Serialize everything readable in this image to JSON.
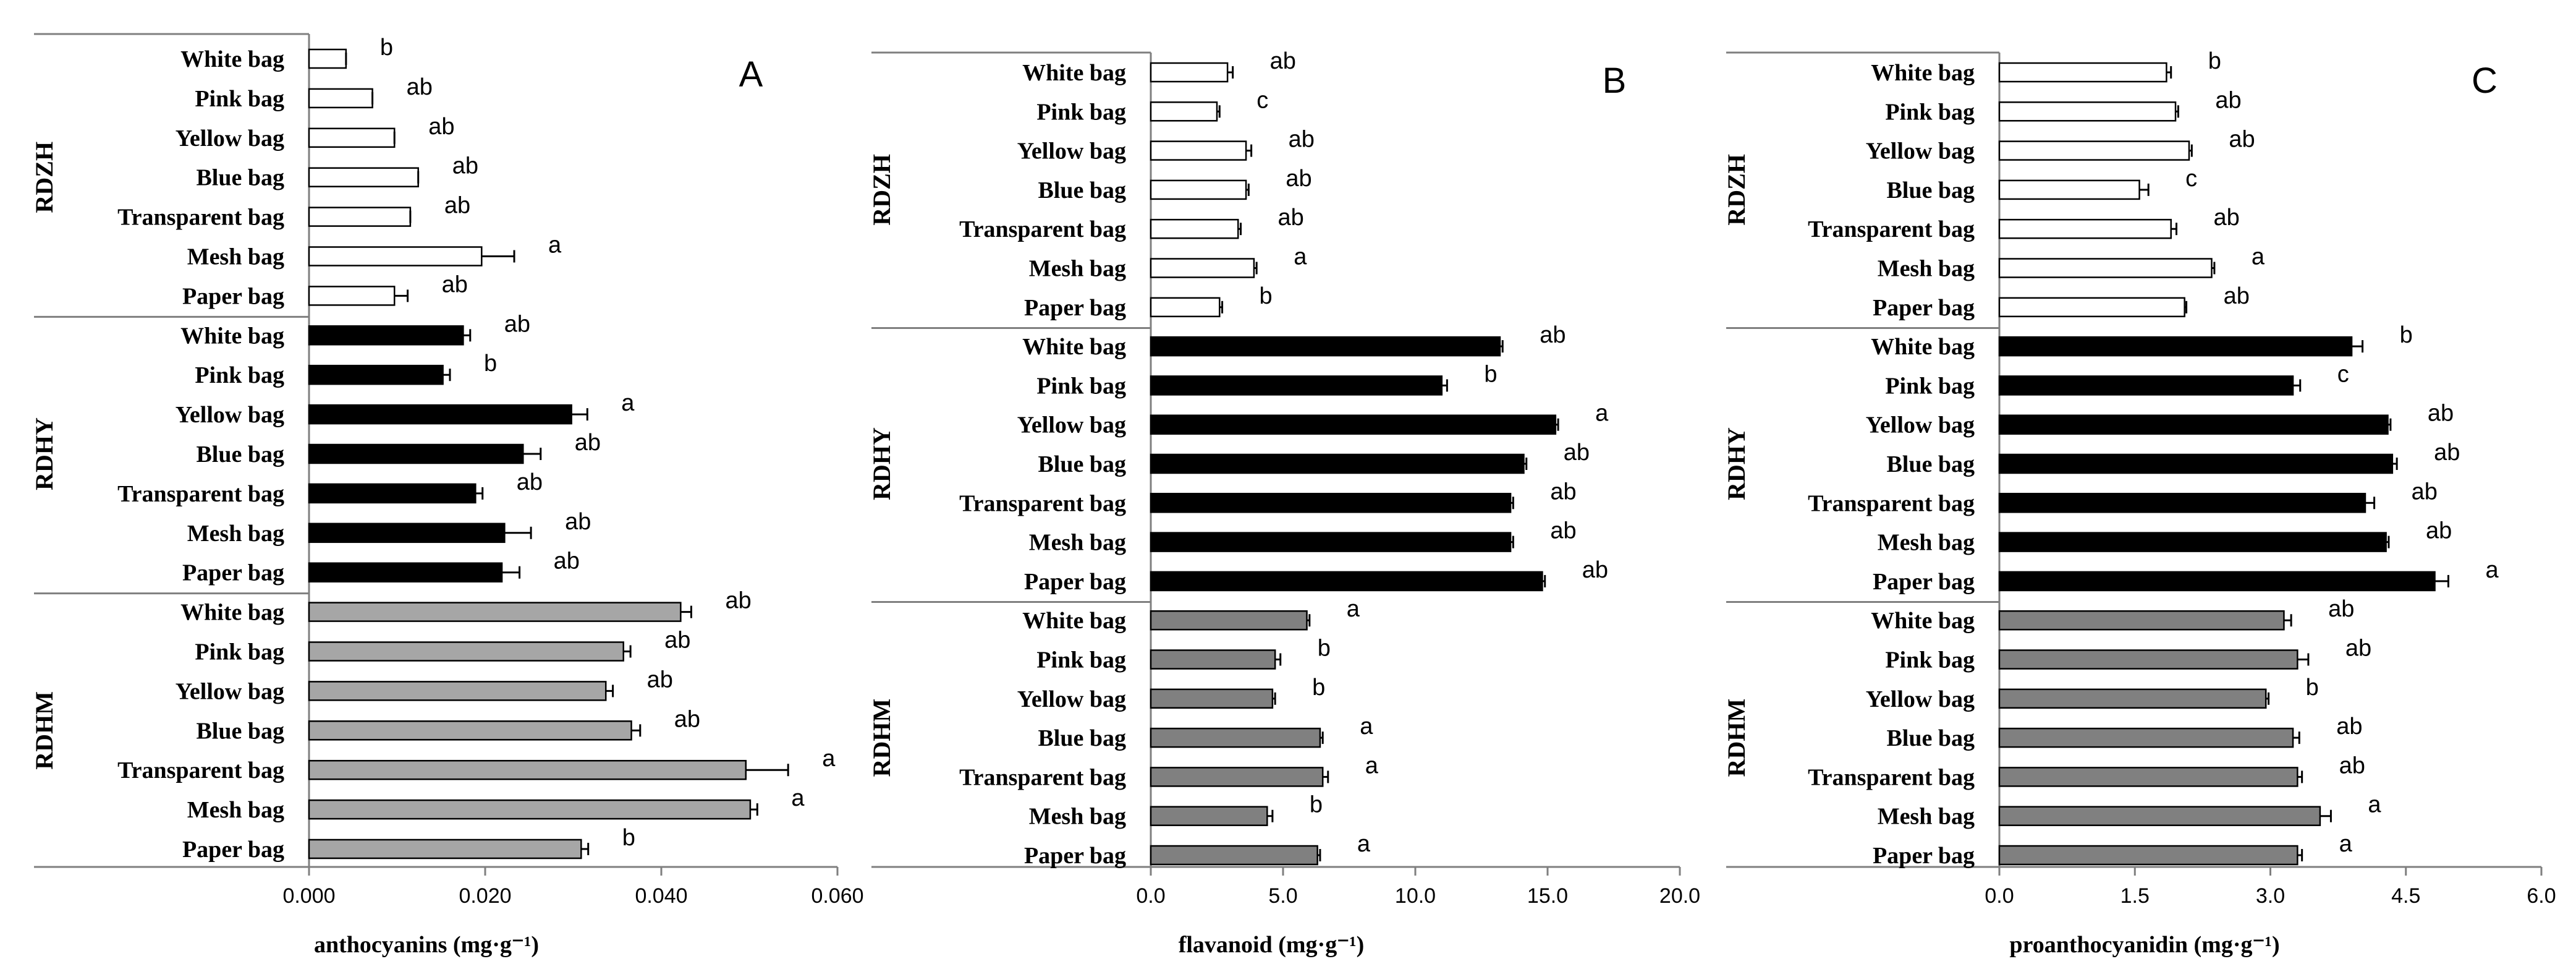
{
  "chart_data": [
    {
      "type": "bar",
      "orientation": "horizontal",
      "panel_label": "A",
      "xlabel": "anthocyanins (mg·g⁻¹)",
      "xlim": [
        0,
        0.06
      ],
      "xticks": [
        "0.000",
        "0.020",
        "0.040",
        "0.060"
      ],
      "xtick_values": [
        0,
        0.02,
        0.04,
        0.06
      ],
      "groups": [
        {
          "name": "RDZH",
          "color": "#ffffff",
          "categories": [
            "White bag",
            "Pink bag",
            "Yellow bag",
            "Blue bag",
            "Transparent bag",
            "Mesh bag",
            "Paper bag"
          ],
          "values": [
            0.0042,
            0.0072,
            0.0097,
            0.0124,
            0.0115,
            0.0196,
            0.0097
          ],
          "errors": [
            0.0,
            0.0,
            0.0,
            0.0,
            0.0,
            0.0037,
            0.0015
          ],
          "letters": [
            "b",
            "ab",
            "ab",
            "ab",
            "ab",
            "a",
            "ab"
          ]
        },
        {
          "name": "RDHY",
          "color": "#000000",
          "categories": [
            "White bag",
            "Pink bag",
            "Yellow bag",
            "Blue bag",
            "Transparent bag",
            "Mesh bag",
            "Paper bag"
          ],
          "values": [
            0.0175,
            0.0152,
            0.0298,
            0.0243,
            0.0189,
            0.0222,
            0.0219
          ],
          "errors": [
            0.0008,
            0.0008,
            0.0018,
            0.002,
            0.0008,
            0.003,
            0.002
          ],
          "letters": [
            "ab",
            "b",
            "a",
            "ab",
            "ab",
            "ab",
            "ab"
          ]
        },
        {
          "name": "RDHM",
          "color": "#a6a6a6",
          "categories": [
            "White bag",
            "Pink bag",
            "Yellow bag",
            "Blue bag",
            "Transparent bag",
            "Mesh bag",
            "Paper bag"
          ],
          "values": [
            0.0422,
            0.0357,
            0.0337,
            0.0366,
            0.0496,
            0.0501,
            0.0309
          ],
          "errors": [
            0.0012,
            0.0008,
            0.0008,
            0.001,
            0.0048,
            0.0008,
            0.0008
          ],
          "letters": [
            "ab",
            "ab",
            "ab",
            "ab",
            "a",
            "a",
            "b"
          ]
        }
      ]
    },
    {
      "type": "bar",
      "orientation": "horizontal",
      "panel_label": "B",
      "xlabel": "flavanoid (mg·g⁻¹)",
      "xlim": [
        0,
        20
      ],
      "xticks": [
        "0.0",
        "5.0",
        "10.0",
        "15.0",
        "20.0"
      ],
      "xtick_values": [
        0,
        5,
        10,
        15,
        20
      ],
      "groups": [
        {
          "name": "RDZH",
          "color": "#ffffff",
          "categories": [
            "White bag",
            "Pink bag",
            "Yellow bag",
            "Blue bag",
            "Transparent bag",
            "Mesh bag",
            "Paper bag"
          ],
          "values": [
            2.9,
            2.5,
            3.6,
            3.6,
            3.3,
            3.9,
            2.6
          ],
          "errors": [
            0.2,
            0.1,
            0.2,
            0.1,
            0.1,
            0.1,
            0.1
          ],
          "letters": [
            "ab",
            "c",
            "ab",
            "ab",
            "ab",
            "a",
            "b"
          ]
        },
        {
          "name": "RDHY",
          "color": "#000000",
          "categories": [
            "White bag",
            "Pink bag",
            "Yellow bag",
            "Blue bag",
            "Transparent bag",
            "Mesh bag",
            "Paper bag"
          ],
          "values": [
            13.2,
            11.0,
            15.3,
            14.1,
            13.6,
            13.6,
            14.8
          ],
          "errors": [
            0.1,
            0.2,
            0.1,
            0.1,
            0.1,
            0.1,
            0.1
          ],
          "letters": [
            "ab",
            "b",
            "a",
            "ab",
            "ab",
            "ab",
            "ab"
          ]
        },
        {
          "name": "RDHM",
          "color": "#808080",
          "categories": [
            "White bag",
            "Pink bag",
            "Yellow bag",
            "Blue bag",
            "Transparent bag",
            "Mesh bag",
            "Paper bag"
          ],
          "values": [
            5.9,
            4.7,
            4.6,
            6.4,
            6.5,
            4.4,
            6.3
          ],
          "errors": [
            0.1,
            0.2,
            0.1,
            0.1,
            0.2,
            0.2,
            0.1
          ],
          "letters": [
            "a",
            "b",
            "b",
            "a",
            "a",
            "b",
            "a"
          ]
        }
      ]
    },
    {
      "type": "bar",
      "orientation": "horizontal",
      "panel_label": "C",
      "xlabel": "proanthocyanidin (mg·g⁻¹)",
      "xlim": [
        0,
        6
      ],
      "xticks": [
        "0.0",
        "1.5",
        "3.0",
        "4.5",
        "6.0"
      ],
      "xtick_values": [
        0,
        1.5,
        3,
        4.5,
        6
      ],
      "groups": [
        {
          "name": "RDZH",
          "color": "#ffffff",
          "categories": [
            "White bag",
            "Pink bag",
            "Yellow bag",
            "Blue bag",
            "Transparent bag",
            "Mesh bag",
            "Paper bag"
          ],
          "values": [
            1.85,
            1.95,
            2.1,
            1.55,
            1.9,
            2.35,
            2.05
          ],
          "errors": [
            0.05,
            0.03,
            0.03,
            0.1,
            0.06,
            0.03,
            0.02
          ],
          "letters": [
            "b",
            "ab",
            "ab",
            "c",
            "ab",
            "a",
            "ab"
          ]
        },
        {
          "name": "RDHY",
          "color": "#000000",
          "categories": [
            "White bag",
            "Pink bag",
            "Yellow bag",
            "Blue bag",
            "Transparent bag",
            "Mesh bag",
            "Paper bag"
          ],
          "values": [
            3.9,
            3.25,
            4.3,
            4.35,
            4.05,
            4.28,
            4.82
          ],
          "errors": [
            0.12,
            0.08,
            0.03,
            0.05,
            0.1,
            0.03,
            0.15
          ],
          "letters": [
            "b",
            "c",
            "ab",
            "ab",
            "ab",
            "ab",
            "a"
          ]
        },
        {
          "name": "RDHM",
          "color": "#808080",
          "categories": [
            "White bag",
            "Pink bag",
            "Yellow bag",
            "Blue bag",
            "Transparent bag",
            "Mesh bag",
            "Paper bag"
          ],
          "values": [
            3.15,
            3.3,
            2.95,
            3.25,
            3.3,
            3.55,
            3.3
          ],
          "errors": [
            0.08,
            0.12,
            0.03,
            0.07,
            0.05,
            0.12,
            0.05
          ],
          "letters": [
            "ab",
            "ab",
            "b",
            "ab",
            "ab",
            "a",
            "a"
          ]
        }
      ]
    }
  ]
}
